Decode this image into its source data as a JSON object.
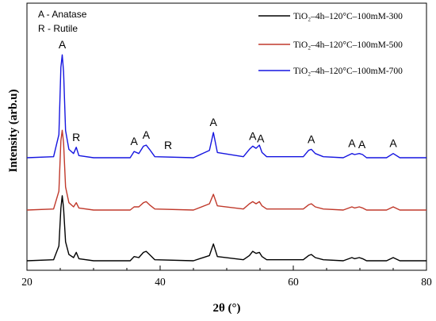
{
  "chart_data": {
    "type": "line",
    "xlabel": "2θ (°)",
    "ylabel": "Intensity (arb.u)",
    "xlim": [
      20,
      80
    ],
    "xticks": [
      20,
      40,
      60,
      80
    ],
    "xtick_labels": [
      "20",
      "40",
      "60",
      "80"
    ],
    "grid": false,
    "legend_position": "top-right",
    "phase_key": [
      "A - Anatase",
      "R - Rutile"
    ],
    "series": [
      {
        "name": "TiO₂–4h–120°C–100mM-300",
        "color": "#000000",
        "baseline": 0.0,
        "x": [
          20,
          24.0,
          24.8,
          25.1,
          25.3,
          25.5,
          25.8,
          26.3,
          27.0,
          27.4,
          27.8,
          30.0,
          35.5,
          36.1,
          36.8,
          37.5,
          37.9,
          38.4,
          39.2,
          45.0,
          47.4,
          48.0,
          48.6,
          52.5,
          53.4,
          53.9,
          54.4,
          54.9,
          55.3,
          56.0,
          61.5,
          62.3,
          62.7,
          63.3,
          64.5,
          67.5,
          68.8,
          69.2,
          69.9,
          70.4,
          71.0,
          74.0,
          75.0,
          76.0,
          80
        ],
        "y": [
          1,
          1.5,
          8,
          26,
          32,
          26,
          10,
          4,
          2.5,
          5,
          2,
          1,
          1,
          3,
          2.5,
          5,
          5.5,
          4,
          1.5,
          1,
          3.5,
          9,
          3,
          1.5,
          3.5,
          5.5,
          4.5,
          5,
          3,
          1.5,
          1.5,
          3.5,
          4,
          2.5,
          1.5,
          1,
          2.5,
          2,
          2.5,
          2,
          1,
          1,
          2.5,
          1,
          1
        ]
      },
      {
        "name": "TiO₂–4h–120°C–100mM-500",
        "color": "#c0392b",
        "baseline": 1.0,
        "x": [
          20,
          24.0,
          24.8,
          25.1,
          25.3,
          25.5,
          25.8,
          26.3,
          27.0,
          27.4,
          27.8,
          30.0,
          35.5,
          36.1,
          36.8,
          37.5,
          37.9,
          38.4,
          39.2,
          45.0,
          47.4,
          48.0,
          48.6,
          52.5,
          53.4,
          53.9,
          54.4,
          54.9,
          55.3,
          56.0,
          61.5,
          62.3,
          62.7,
          63.3,
          64.5,
          67.5,
          68.8,
          69.2,
          69.9,
          70.4,
          71.0,
          74.0,
          75.0,
          76.0,
          80
        ],
        "y": [
          1,
          1.5,
          10,
          34,
          39,
          33,
          12,
          4.5,
          2.5,
          4.5,
          2,
          1,
          1,
          2.5,
          2.5,
          4.5,
          5,
          3.5,
          1.5,
          1,
          4,
          8.5,
          3,
          1.5,
          4,
          5,
          4,
          5,
          3,
          1.5,
          1.5,
          3.5,
          4,
          2.5,
          1.5,
          1,
          2.5,
          2,
          2.5,
          2,
          1,
          1,
          2.5,
          1,
          1
        ]
      },
      {
        "name": "TiO₂–4h–120°C–100mM-700",
        "color": "#1515e0",
        "baseline": 2.0,
        "x": [
          20,
          24.0,
          24.8,
          25.1,
          25.3,
          25.5,
          25.8,
          26.3,
          27.0,
          27.4,
          27.8,
          30.0,
          35.5,
          36.1,
          36.8,
          37.5,
          37.9,
          38.4,
          39.2,
          45.0,
          47.4,
          48.0,
          48.6,
          52.5,
          53.4,
          53.9,
          54.4,
          54.9,
          55.3,
          56.0,
          61.5,
          62.3,
          62.7,
          63.3,
          64.5,
          67.5,
          68.8,
          69.2,
          69.9,
          70.4,
          71.0,
          74.0,
          75.0,
          76.0,
          80
        ],
        "y": [
          1,
          1.5,
          12,
          44,
          50,
          42,
          14,
          5,
          3,
          6,
          2,
          1,
          1,
          4,
          3,
          6.5,
          7,
          5,
          1.5,
          1,
          4.5,
          13,
          3.5,
          1.5,
          5,
          6.5,
          5.5,
          7,
          3.5,
          1.5,
          1.5,
          4.5,
          5,
          3,
          1.5,
          1,
          3,
          2.5,
          3,
          2.5,
          1,
          1,
          3,
          1,
          1
        ]
      }
    ],
    "annotations": [
      {
        "label": "A",
        "x": 25.3
      },
      {
        "label": "R",
        "x": 27.4
      },
      {
        "label": "A",
        "x": 36.1
      },
      {
        "label": "A",
        "x": 37.9
      },
      {
        "label": "R",
        "x": 41.2
      },
      {
        "label": "A",
        "x": 48.0
      },
      {
        "label": "A",
        "x": 53.9
      },
      {
        "label": "A",
        "x": 55.1
      },
      {
        "label": "A",
        "x": 62.7
      },
      {
        "label": "A",
        "x": 68.8
      },
      {
        "label": "A",
        "x": 70.3
      },
      {
        "label": "A",
        "x": 75.0
      }
    ]
  }
}
